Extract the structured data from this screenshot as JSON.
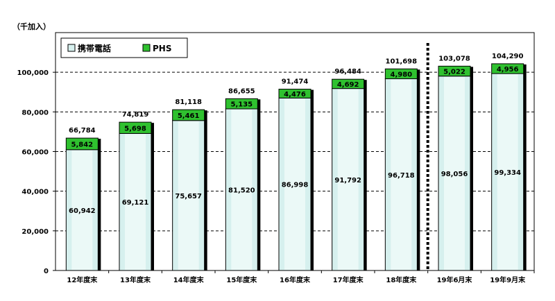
{
  "chart_data": {
    "type": "bar",
    "stacked": true,
    "unit_label": "（千加入）",
    "categories": [
      "12年度末",
      "13年度末",
      "14年度末",
      "15年度末",
      "16年度末",
      "17年度末",
      "18年度末",
      "19年6月末",
      "19年9月末"
    ],
    "series": [
      {
        "name": "携帯電話",
        "color": "#d6f0ee",
        "values": [
          60942,
          69121,
          75657,
          81520,
          86998,
          91792,
          96718,
          98056,
          99334
        ],
        "labels": [
          "60,942",
          "69,121",
          "75,657",
          "81,520",
          "86,998",
          "91,792",
          "96,718",
          "98,056",
          "99,334"
        ]
      },
      {
        "name": "PHS",
        "color": "#2fc12f",
        "values": [
          5842,
          5698,
          5461,
          5135,
          4476,
          4692,
          4980,
          5022,
          4956
        ],
        "labels": [
          "5,842",
          "5,698",
          "5,461",
          "5,135",
          "4,476",
          "4,692",
          "4,980",
          "5,022",
          "4,956"
        ]
      }
    ],
    "totals": [
      "66,784",
      "74,819",
      "81,118",
      "86,655",
      "91,474",
      "96,484",
      "101,698",
      "103,078",
      "104,290"
    ],
    "y_ticks": [
      "0",
      "20,000",
      "40,000",
      "60,000",
      "80,000",
      "100,000"
    ],
    "ylim": [
      0,
      120000
    ],
    "grid": "dashed horizontal",
    "legend_position": "top-left",
    "divider": "dotted vertical line between 18年度末 and 19年6月末"
  }
}
